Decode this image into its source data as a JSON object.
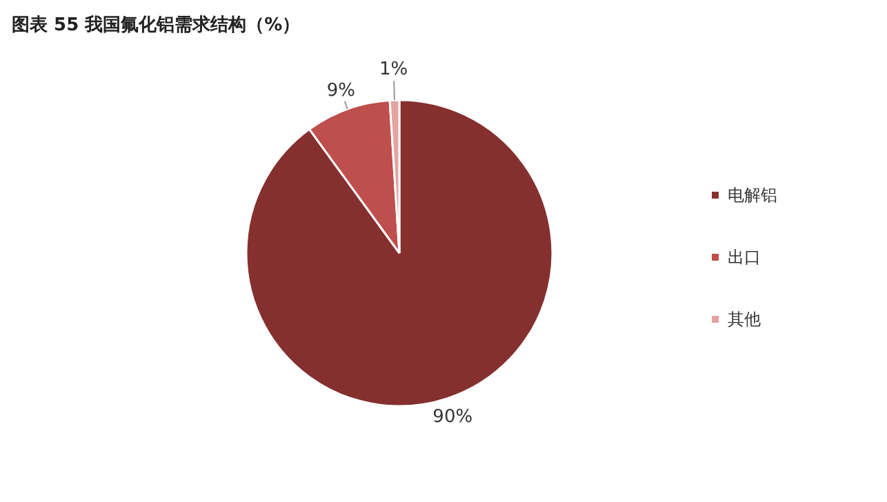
{
  "chart_data": {
    "type": "pie",
    "title": "图表 55 我国氟化铝需求结构（%）",
    "categories": [
      "电解铝",
      "出口",
      "其他"
    ],
    "values": [
      90,
      9,
      1
    ],
    "colors": [
      "#85302f",
      "#bf4f4c",
      "#e3a3a1"
    ],
    "value_labels": [
      "90%",
      "9%",
      "1%"
    ],
    "legend": "right"
  }
}
